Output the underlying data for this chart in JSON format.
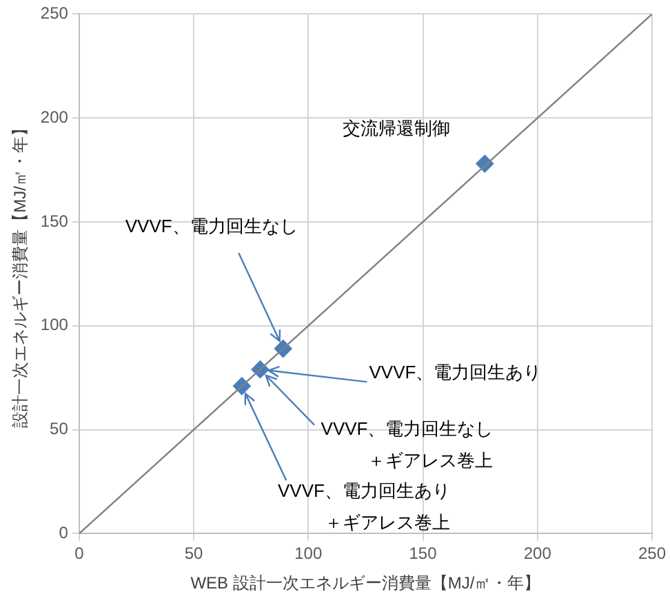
{
  "chart_data": {
    "type": "scatter",
    "xlabel": "WEB 設計一次エネルギー消費量【MJ/㎡・年】",
    "ylabel": "設計一次エネルギー消費量【MJ/㎡・年】",
    "xlim": [
      0,
      250
    ],
    "ylim": [
      0,
      250
    ],
    "xticks": [
      0,
      50,
      100,
      150,
      200,
      250
    ],
    "yticks": [
      0,
      50,
      100,
      150,
      200,
      250
    ],
    "grid": true,
    "legend": false,
    "marker": "diamond",
    "series": [
      {
        "type": "line",
        "color": "#808080",
        "x": [
          0,
          250
        ],
        "values": [
          0,
          250
        ],
        "marker": "none"
      },
      {
        "type": "scatter",
        "color": "#4a7ebb",
        "x": [
          177,
          89,
          79,
          71
        ],
        "values": [
          178,
          89,
          79,
          71
        ]
      }
    ],
    "annotations": [
      {
        "text": "交流帰還制御",
        "x": 177,
        "y": 178
      },
      {
        "text": "VVVF、電力回生なし",
        "x": 89,
        "y": 89
      },
      {
        "text": "VVVF、電力回生あり",
        "x": 79,
        "y": 79
      },
      {
        "text": "VVVF、電力回生なし＋ギアレス巻上",
        "x": 79,
        "y": 79
      },
      {
        "text": "VVVF、電力回生あり＋ギアレス巻上",
        "x": 71,
        "y": 71
      }
    ]
  }
}
